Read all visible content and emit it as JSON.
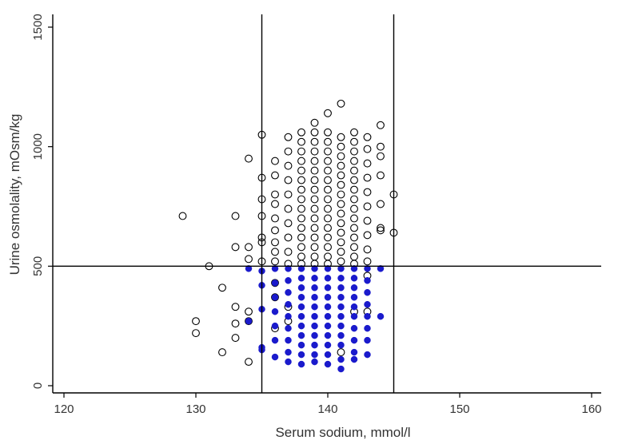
{
  "chart_data": {
    "type": "scatter",
    "xlabel": "Serum sodium, mmol/l",
    "ylabel": "Urine osmolality, mOsm/kg",
    "xlim": [
      120,
      160
    ],
    "ylim": [
      0,
      1500
    ],
    "x_ticks": [
      "120",
      "130",
      "140",
      "150",
      "160"
    ],
    "y_ticks": [
      "0",
      "500",
      "1000",
      "1500"
    ],
    "reference_lines": {
      "x": [
        135,
        145
      ],
      "y": [
        500
      ]
    },
    "grid": false,
    "legend": "none",
    "colors": {
      "axis": "#000000",
      "filled_points": "#1a1acc",
      "open_points": "#000000"
    },
    "series": [
      {
        "marker": "open-circle",
        "points": [
          [
            129,
            710
          ],
          [
            130,
            270
          ],
          [
            130,
            220
          ],
          [
            131,
            500
          ],
          [
            132,
            410
          ],
          [
            132,
            140
          ],
          [
            133,
            710
          ],
          [
            133,
            580
          ],
          [
            133,
            330
          ],
          [
            133,
            260
          ],
          [
            133,
            200
          ],
          [
            134,
            950
          ],
          [
            134,
            580
          ],
          [
            134,
            530
          ],
          [
            134,
            310
          ],
          [
            134,
            270
          ],
          [
            134,
            100
          ],
          [
            135,
            1050
          ],
          [
            135,
            870
          ],
          [
            135,
            780
          ],
          [
            135,
            710
          ],
          [
            135,
            620
          ],
          [
            135,
            600
          ],
          [
            135,
            520
          ],
          [
            136,
            940
          ],
          [
            136,
            880
          ],
          [
            136,
            800
          ],
          [
            136,
            760
          ],
          [
            136,
            700
          ],
          [
            136,
            650
          ],
          [
            136,
            600
          ],
          [
            136,
            560
          ],
          [
            136,
            520
          ],
          [
            136,
            430
          ],
          [
            136,
            370
          ],
          [
            136,
            240
          ],
          [
            137,
            1040
          ],
          [
            137,
            980
          ],
          [
            137,
            920
          ],
          [
            137,
            860
          ],
          [
            137,
            800
          ],
          [
            137,
            740
          ],
          [
            137,
            680
          ],
          [
            137,
            620
          ],
          [
            137,
            560
          ],
          [
            137,
            510
          ],
          [
            137,
            330
          ],
          [
            137,
            270
          ],
          [
            138,
            1060
          ],
          [
            138,
            1020
          ],
          [
            138,
            980
          ],
          [
            138,
            940
          ],
          [
            138,
            900
          ],
          [
            138,
            860
          ],
          [
            138,
            820
          ],
          [
            138,
            780
          ],
          [
            138,
            740
          ],
          [
            138,
            700
          ],
          [
            138,
            660
          ],
          [
            138,
            620
          ],
          [
            138,
            580
          ],
          [
            138,
            540
          ],
          [
            138,
            510
          ],
          [
            139,
            1100
          ],
          [
            139,
            1060
          ],
          [
            139,
            1020
          ],
          [
            139,
            980
          ],
          [
            139,
            940
          ],
          [
            139,
            900
          ],
          [
            139,
            860
          ],
          [
            139,
            820
          ],
          [
            139,
            780
          ],
          [
            139,
            740
          ],
          [
            139,
            700
          ],
          [
            139,
            660
          ],
          [
            139,
            620
          ],
          [
            139,
            580
          ],
          [
            139,
            540
          ],
          [
            139,
            510
          ],
          [
            140,
            1140
          ],
          [
            140,
            1060
          ],
          [
            140,
            1020
          ],
          [
            140,
            980
          ],
          [
            140,
            940
          ],
          [
            140,
            900
          ],
          [
            140,
            860
          ],
          [
            140,
            820
          ],
          [
            140,
            780
          ],
          [
            140,
            740
          ],
          [
            140,
            700
          ],
          [
            140,
            660
          ],
          [
            140,
            620
          ],
          [
            140,
            580
          ],
          [
            140,
            540
          ],
          [
            140,
            510
          ],
          [
            141,
            1180
          ],
          [
            141,
            1040
          ],
          [
            141,
            1000
          ],
          [
            141,
            960
          ],
          [
            141,
            920
          ],
          [
            141,
            880
          ],
          [
            141,
            840
          ],
          [
            141,
            800
          ],
          [
            141,
            760
          ],
          [
            141,
            720
          ],
          [
            141,
            680
          ],
          [
            141,
            640
          ],
          [
            141,
            600
          ],
          [
            141,
            560
          ],
          [
            141,
            520
          ],
          [
            141,
            140
          ],
          [
            142,
            1060
          ],
          [
            142,
            1020
          ],
          [
            142,
            980
          ],
          [
            142,
            940
          ],
          [
            142,
            900
          ],
          [
            142,
            860
          ],
          [
            142,
            820
          ],
          [
            142,
            780
          ],
          [
            142,
            740
          ],
          [
            142,
            700
          ],
          [
            142,
            660
          ],
          [
            142,
            620
          ],
          [
            142,
            580
          ],
          [
            142,
            540
          ],
          [
            142,
            510
          ],
          [
            142,
            310
          ],
          [
            143,
            1040
          ],
          [
            143,
            990
          ],
          [
            143,
            930
          ],
          [
            143,
            870
          ],
          [
            143,
            810
          ],
          [
            143,
            750
          ],
          [
            143,
            690
          ],
          [
            143,
            630
          ],
          [
            143,
            570
          ],
          [
            143,
            520
          ],
          [
            143,
            460
          ],
          [
            143,
            310
          ],
          [
            144,
            1090
          ],
          [
            144,
            1000
          ],
          [
            144,
            960
          ],
          [
            144,
            880
          ],
          [
            144,
            760
          ],
          [
            144,
            660
          ],
          [
            144,
            650
          ],
          [
            145,
            800
          ],
          [
            145,
            640
          ]
        ]
      },
      {
        "marker": "filled-circle",
        "points": [
          [
            134,
            490
          ],
          [
            134,
            270
          ],
          [
            135,
            480
          ],
          [
            135,
            420
          ],
          [
            135,
            320
          ],
          [
            135,
            160
          ],
          [
            135,
            150
          ],
          [
            136,
            490
          ],
          [
            136,
            430
          ],
          [
            136,
            370
          ],
          [
            136,
            310
          ],
          [
            136,
            250
          ],
          [
            136,
            190
          ],
          [
            136,
            120
          ],
          [
            137,
            490
          ],
          [
            137,
            440
          ],
          [
            137,
            390
          ],
          [
            137,
            340
          ],
          [
            137,
            290
          ],
          [
            137,
            240
          ],
          [
            137,
            190
          ],
          [
            137,
            140
          ],
          [
            137,
            100
          ],
          [
            138,
            490
          ],
          [
            138,
            450
          ],
          [
            138,
            410
          ],
          [
            138,
            370
          ],
          [
            138,
            330
          ],
          [
            138,
            290
          ],
          [
            138,
            250
          ],
          [
            138,
            210
          ],
          [
            138,
            170
          ],
          [
            138,
            130
          ],
          [
            138,
            90
          ],
          [
            139,
            490
          ],
          [
            139,
            450
          ],
          [
            139,
            410
          ],
          [
            139,
            370
          ],
          [
            139,
            330
          ],
          [
            139,
            290
          ],
          [
            139,
            250
          ],
          [
            139,
            210
          ],
          [
            139,
            170
          ],
          [
            139,
            130
          ],
          [
            139,
            100
          ],
          [
            140,
            490
          ],
          [
            140,
            450
          ],
          [
            140,
            410
          ],
          [
            140,
            370
          ],
          [
            140,
            330
          ],
          [
            140,
            290
          ],
          [
            140,
            250
          ],
          [
            140,
            210
          ],
          [
            140,
            170
          ],
          [
            140,
            130
          ],
          [
            140,
            90
          ],
          [
            141,
            490
          ],
          [
            141,
            450
          ],
          [
            141,
            410
          ],
          [
            141,
            370
          ],
          [
            141,
            330
          ],
          [
            141,
            290
          ],
          [
            141,
            250
          ],
          [
            141,
            210
          ],
          [
            141,
            170
          ],
          [
            141,
            110
          ],
          [
            141,
            70
          ],
          [
            142,
            490
          ],
          [
            142,
            450
          ],
          [
            142,
            410
          ],
          [
            142,
            370
          ],
          [
            142,
            330
          ],
          [
            142,
            290
          ],
          [
            142,
            240
          ],
          [
            142,
            190
          ],
          [
            142,
            140
          ],
          [
            142,
            110
          ],
          [
            143,
            490
          ],
          [
            143,
            440
          ],
          [
            143,
            390
          ],
          [
            143,
            340
          ],
          [
            143,
            290
          ],
          [
            143,
            240
          ],
          [
            143,
            190
          ],
          [
            143,
            130
          ],
          [
            144,
            490
          ],
          [
            144,
            290
          ]
        ]
      }
    ]
  }
}
